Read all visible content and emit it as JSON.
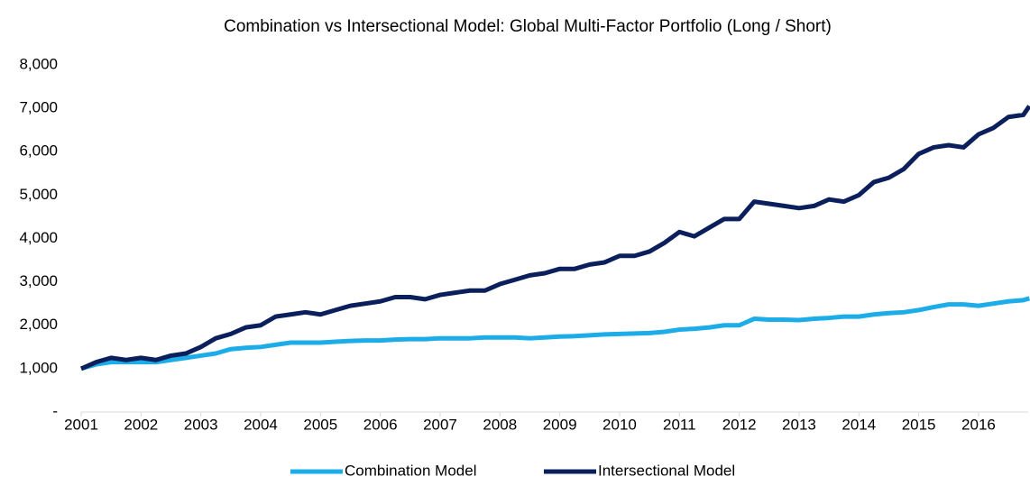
{
  "chart_data": {
    "type": "line",
    "title": "Combination vs  Intersectional Model: Global Multi-Factor Portfolio (Long / Short)",
    "x": [
      2001,
      2001.25,
      2001.5,
      2001.75,
      2002,
      2002.25,
      2002.5,
      2002.75,
      2003,
      2003.25,
      2003.5,
      2003.75,
      2004,
      2004.25,
      2004.5,
      2004.75,
      2005,
      2005.25,
      2005.5,
      2005.75,
      2006,
      2006.25,
      2006.5,
      2006.75,
      2007,
      2007.25,
      2007.5,
      2007.75,
      2008,
      2008.25,
      2008.5,
      2008.75,
      2009,
      2009.25,
      2009.5,
      2009.75,
      2010,
      2010.25,
      2010.5,
      2010.75,
      2011,
      2011.25,
      2011.5,
      2011.75,
      2012,
      2012.25,
      2012.5,
      2012.75,
      2013,
      2013.25,
      2013.5,
      2013.75,
      2014,
      2014.25,
      2014.5,
      2014.75,
      2015,
      2015.25,
      2015.5,
      2015.75,
      2016,
      2016.25,
      2016.5,
      2016.75,
      2016.85
    ],
    "series": [
      {
        "name": "Combination Model",
        "color": "#1cace8",
        "values": [
          1000,
          1100,
          1150,
          1150,
          1150,
          1150,
          1200,
          1250,
          1300,
          1350,
          1450,
          1480,
          1500,
          1550,
          1600,
          1600,
          1600,
          1620,
          1640,
          1650,
          1650,
          1670,
          1680,
          1680,
          1700,
          1700,
          1700,
          1720,
          1720,
          1720,
          1700,
          1720,
          1740,
          1750,
          1770,
          1790,
          1800,
          1810,
          1820,
          1850,
          1900,
          1920,
          1950,
          2000,
          2000,
          2150,
          2130,
          2130,
          2120,
          2150,
          2170,
          2200,
          2200,
          2250,
          2280,
          2300,
          2350,
          2420,
          2480,
          2480,
          2450,
          2500,
          2550,
          2580,
          2620
        ]
      },
      {
        "name": "Intersectional Model",
        "color": "#0b1f5c",
        "values": [
          1000,
          1150,
          1250,
          1200,
          1250,
          1200,
          1300,
          1350,
          1500,
          1700,
          1800,
          1950,
          2000,
          2200,
          2250,
          2300,
          2250,
          2350,
          2450,
          2500,
          2550,
          2650,
          2650,
          2600,
          2700,
          2750,
          2800,
          2800,
          2950,
          3050,
          3150,
          3200,
          3300,
          3300,
          3400,
          3450,
          3600,
          3600,
          3700,
          3900,
          4150,
          4050,
          4250,
          4450,
          4450,
          4850,
          4800,
          4750,
          4700,
          4750,
          4900,
          4850,
          5000,
          5300,
          5400,
          5600,
          5950,
          6100,
          6150,
          6100,
          6400,
          6550,
          6800,
          6850,
          7050
        ]
      }
    ],
    "xlim": [
      2001,
      2016.83
    ],
    "xticks": [
      2001,
      2002,
      2003,
      2004,
      2005,
      2006,
      2007,
      2008,
      2009,
      2010,
      2011,
      2012,
      2013,
      2014,
      2015,
      2016
    ],
    "ylim": [
      0,
      8000
    ],
    "yticks": [
      {
        "value": 0,
        "label": "-"
      },
      {
        "value": 1000,
        "label": "1,000"
      },
      {
        "value": 2000,
        "label": "2,000"
      },
      {
        "value": 3000,
        "label": "3,000"
      },
      {
        "value": 4000,
        "label": "4,000"
      },
      {
        "value": 5000,
        "label": "5,000"
      },
      {
        "value": 6000,
        "label": "6,000"
      },
      {
        "value": 7000,
        "label": "7,000"
      },
      {
        "value": 8000,
        "label": "8,000"
      }
    ],
    "legend": "bottom"
  }
}
